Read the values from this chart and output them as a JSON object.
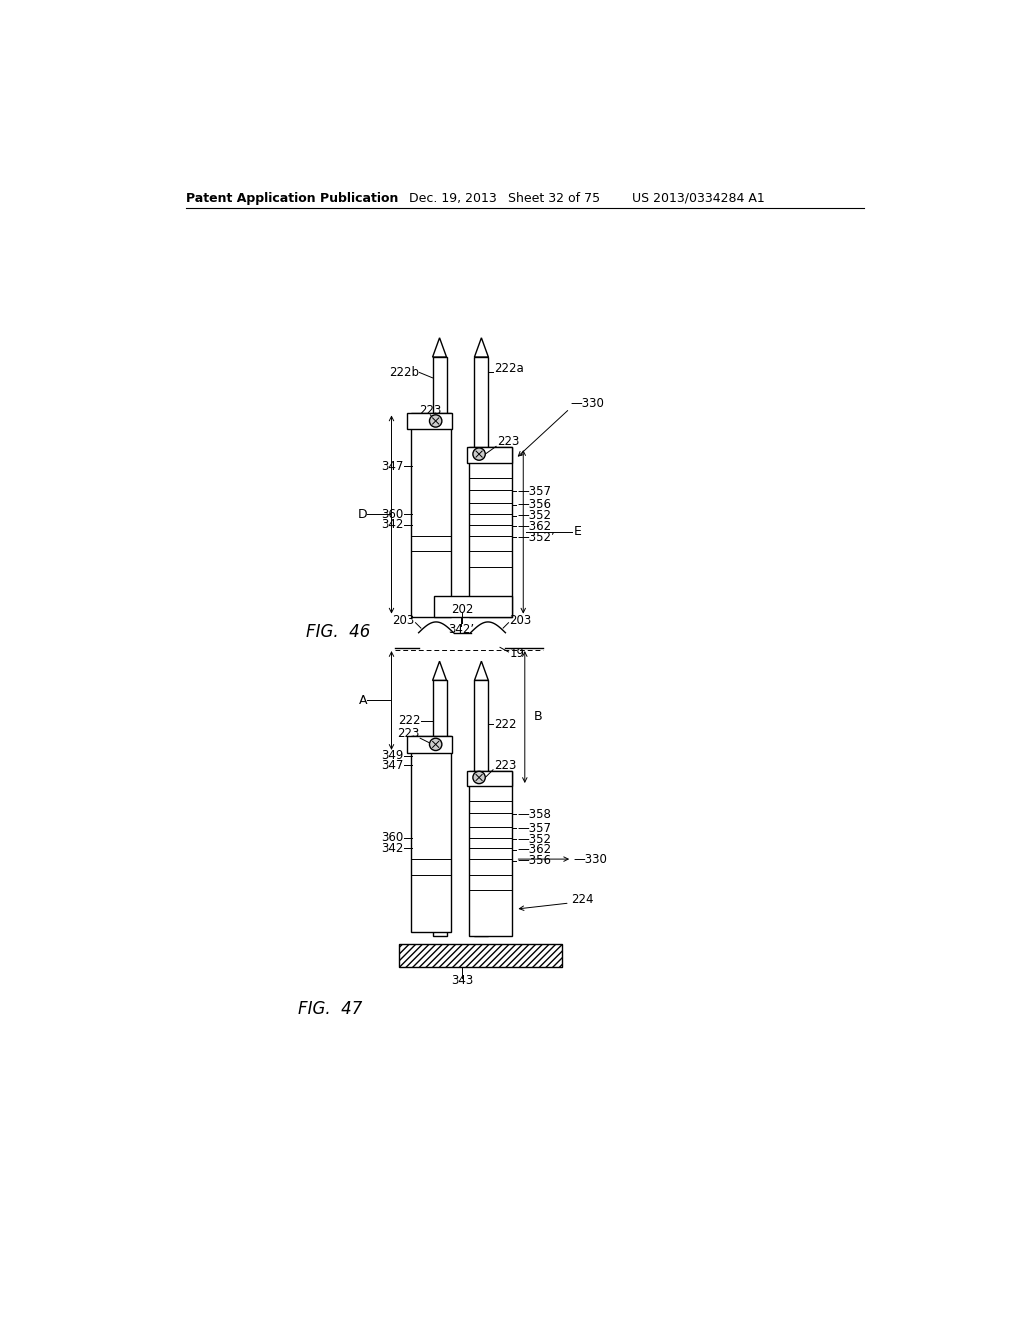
{
  "bg_color": "#ffffff",
  "header_text": "Patent Application Publication",
  "header_date": "Dec. 19, 2013",
  "header_sheet": "Sheet 32 of 75",
  "header_patent": "US 2013/0334284 A1",
  "fig46_label": "FIG.  46",
  "fig47_label": "FIG.  47"
}
